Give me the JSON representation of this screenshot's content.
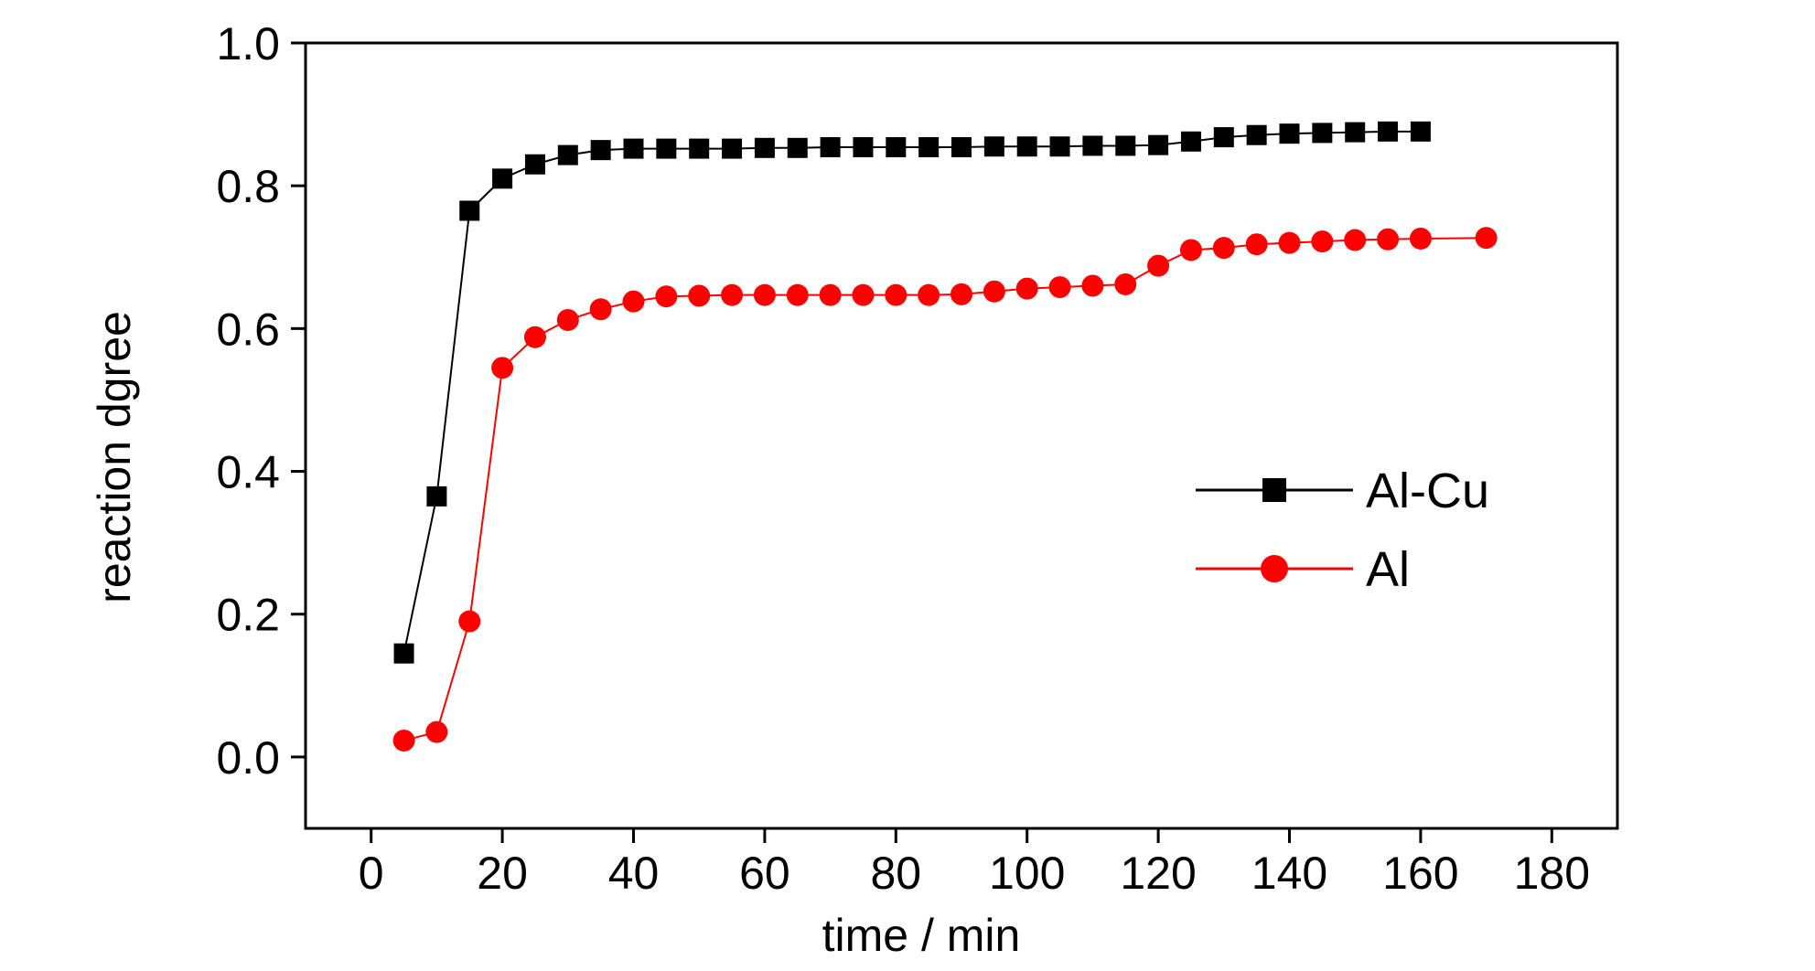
{
  "chart_data": {
    "type": "line",
    "xlabel": "time / min",
    "ylabel": "reaction dgree",
    "xlim": [
      -10,
      190
    ],
    "ylim": [
      -0.1,
      1.0
    ],
    "xticks": [
      0,
      20,
      40,
      60,
      80,
      100,
      120,
      140,
      160,
      180
    ],
    "xtick_labels": [
      "0",
      "20",
      "40",
      "60",
      "80",
      "100",
      "120",
      "140",
      "160",
      "180"
    ],
    "yticks": [
      0.0,
      0.2,
      0.4,
      0.6,
      0.8,
      1.0
    ],
    "ytick_labels": [
      "0.0",
      "0.2",
      "0.4",
      "0.6",
      "0.8",
      "1.0"
    ],
    "grid": false,
    "legend_position": "right",
    "series": [
      {
        "name": "Al-Cu",
        "color": "#000000",
        "marker": "square",
        "x": [
          5,
          10,
          15,
          20,
          25,
          30,
          35,
          40,
          45,
          50,
          55,
          60,
          65,
          70,
          75,
          80,
          85,
          90,
          95,
          100,
          105,
          110,
          115,
          120,
          125,
          130,
          135,
          140,
          145,
          150,
          155,
          160
        ],
        "y": [
          0.145,
          0.365,
          0.765,
          0.81,
          0.83,
          0.843,
          0.85,
          0.852,
          0.852,
          0.852,
          0.852,
          0.853,
          0.853,
          0.854,
          0.854,
          0.854,
          0.854,
          0.854,
          0.855,
          0.855,
          0.855,
          0.856,
          0.856,
          0.857,
          0.862,
          0.868,
          0.871,
          0.873,
          0.874,
          0.875,
          0.876,
          0.876
        ]
      },
      {
        "name": "Al",
        "color": "#ff0000",
        "marker": "circle",
        "x": [
          5,
          10,
          15,
          20,
          25,
          30,
          35,
          40,
          45,
          50,
          55,
          60,
          65,
          70,
          75,
          80,
          85,
          90,
          95,
          100,
          105,
          110,
          115,
          120,
          125,
          130,
          135,
          140,
          145,
          150,
          155,
          160,
          170
        ],
        "y": [
          0.023,
          0.035,
          0.19,
          0.545,
          0.588,
          0.612,
          0.627,
          0.638,
          0.645,
          0.646,
          0.647,
          0.647,
          0.647,
          0.647,
          0.647,
          0.647,
          0.647,
          0.648,
          0.652,
          0.656,
          0.658,
          0.66,
          0.662,
          0.688,
          0.71,
          0.713,
          0.718,
          0.72,
          0.722,
          0.724,
          0.725,
          0.726,
          0.727
        ]
      }
    ]
  }
}
